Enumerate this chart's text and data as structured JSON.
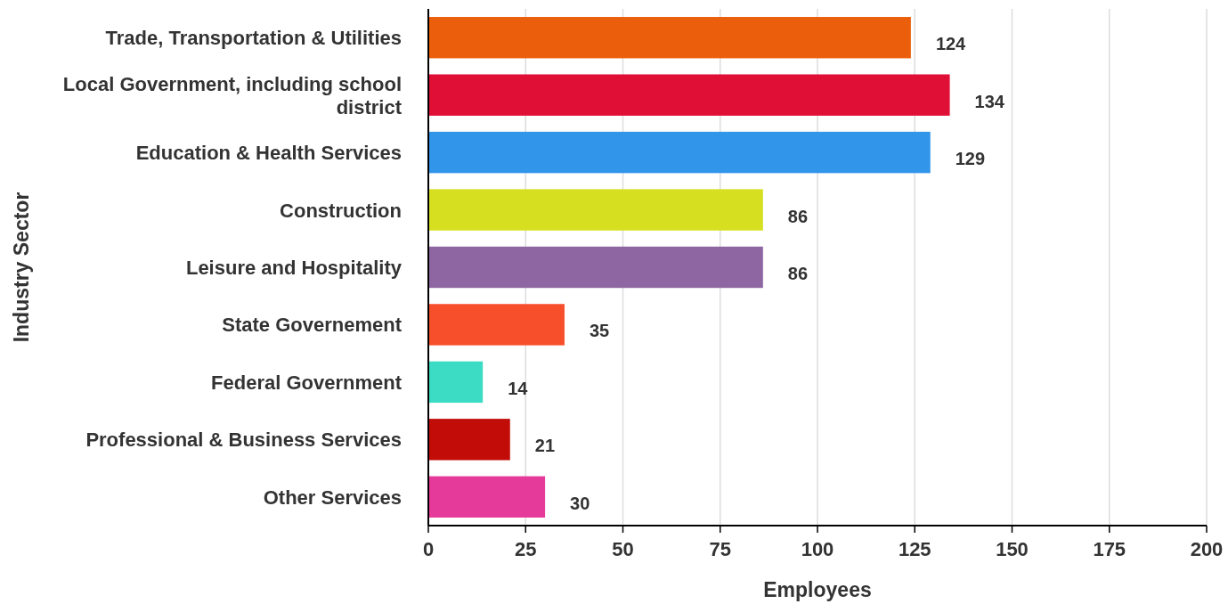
{
  "chart_data": {
    "type": "bar",
    "orientation": "horizontal",
    "xlabel": "Employees",
    "ylabel": "Industry Sector",
    "categories": [
      "Trade, Transportation & Utilities",
      "Local Government, including school district",
      "Education & Health Services",
      "Construction",
      "Leisure and Hospitality",
      "State Governement",
      "Federal Government",
      "Professional & Business Services",
      "Other Services"
    ],
    "values": [
      124,
      134,
      129,
      86,
      86,
      35,
      14,
      21,
      30
    ],
    "colors": [
      "#eb5f0c",
      "#e00f35",
      "#3195ea",
      "#d6e020",
      "#8e67a2",
      "#f74f2c",
      "#3cdcc4",
      "#c20c08",
      "#e63a9a"
    ],
    "xlim": [
      0,
      200
    ],
    "xticks": [
      0,
      25,
      50,
      75,
      100,
      125,
      150,
      175,
      200
    ],
    "grid": "x",
    "data_labels": true
  }
}
